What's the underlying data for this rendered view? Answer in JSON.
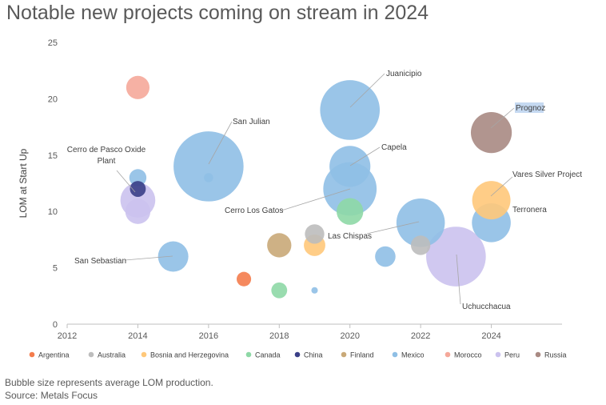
{
  "title": "Notable new projects coming on stream in 2024",
  "footer": {
    "note": "Bubble size represents average LOM production.",
    "source": "Source: Metals Focus"
  },
  "colors": {
    "Argentina": "#F47C4C",
    "Australia": "#BDBDBD",
    "Bosnia and Herzegovina": "#FFC87A",
    "Canada": "#8ED8A6",
    "China": "#3A3F87",
    "Finland": "#C9A978",
    "Mexico": "#8FBFE5",
    "Morocco": "#F5A89A",
    "Peru": "#CBC2EE",
    "Russia": "#A98A83"
  },
  "chart_data": {
    "type": "bubble",
    "title": "Notable new projects coming on stream in 2024",
    "xlabel": "",
    "ylabel": "LOM at Start Up",
    "xlim": [
      2012,
      2026
    ],
    "ylim": [
      0,
      25
    ],
    "xticks": [
      2012,
      2014,
      2016,
      2018,
      2020,
      2022,
      2024
    ],
    "yticks": [
      0,
      5,
      10,
      15,
      20,
      25
    ],
    "grid": false,
    "legend": [
      "Argentina",
      "Australia",
      "Bosnia and Herzegovina",
      "Canada",
      "China",
      "Finland",
      "Mexico",
      "Morocco",
      "Peru",
      "Russia"
    ],
    "legend_position": "bottom",
    "bubble_size_meaning": "average LOM production (relative)",
    "points": [
      {
        "country": "Argentina",
        "x": 2017,
        "y": 4,
        "size": 0.5
      },
      {
        "country": "Australia",
        "x": 2019,
        "y": 8,
        "size": 0.9
      },
      {
        "country": "Australia",
        "x": 2022,
        "y": 7,
        "size": 0.9
      },
      {
        "country": "Bosnia and Herzegovina",
        "x": 2019,
        "y": 7,
        "size": 1.1
      },
      {
        "country": "Bosnia and Herzegovina",
        "x": 2024,
        "y": 11,
        "size": 3.5
      },
      {
        "country": "Canada",
        "x": 2018,
        "y": 3,
        "size": 0.6
      },
      {
        "country": "Canada",
        "x": 2020,
        "y": 10,
        "size": 1.7
      },
      {
        "country": "China",
        "x": 2014,
        "y": 12,
        "size": 0.6
      },
      {
        "country": "Finland",
        "x": 2018,
        "y": 7,
        "size": 1.4
      },
      {
        "country": "Mexico",
        "x": 2014,
        "y": 13,
        "size": 0.7
      },
      {
        "country": "Mexico",
        "x": 2015,
        "y": 6,
        "size": 2.2
      },
      {
        "country": "Mexico",
        "x": 2016,
        "y": 14,
        "size": 11.7,
        "label": "San Julian"
      },
      {
        "country": "Mexico",
        "x": 2016,
        "y": 13,
        "size": 0.2
      },
      {
        "country": "Mexico",
        "x": 2019,
        "y": 3,
        "size": 0.1
      },
      {
        "country": "Mexico",
        "x": 2020,
        "y": 19,
        "size": 8.5,
        "label": "Juanicipio"
      },
      {
        "country": "Mexico",
        "x": 2020,
        "y": 14,
        "size": 4.0,
        "label": "Capela"
      },
      {
        "country": "Mexico",
        "x": 2020,
        "y": 12,
        "size": 6.8,
        "label": "Cerro Los Gatos"
      },
      {
        "country": "Mexico",
        "x": 2021,
        "y": 6,
        "size": 1.0
      },
      {
        "country": "Mexico",
        "x": 2022,
        "y": 9,
        "size": 5.6,
        "label": "Las Chispas"
      },
      {
        "country": "Mexico",
        "x": 2024,
        "y": 9,
        "size": 3.6,
        "label": "Terronera"
      },
      {
        "country": "Morocco",
        "x": 2014,
        "y": 21,
        "size": 1.3
      },
      {
        "country": "Peru",
        "x": 2014,
        "y": 11,
        "size": 2.9,
        "label": "Cerro de Pasco Oxide Plant"
      },
      {
        "country": "Peru",
        "x": 2014,
        "y": 10,
        "size": 1.5
      },
      {
        "country": "Peru",
        "x": 2023,
        "y": 6,
        "size": 8.5,
        "label": "Uchucchacua"
      },
      {
        "country": "Russia",
        "x": 2024,
        "y": 17,
        "size": 4.0,
        "label": "Prognoz"
      }
    ],
    "annotations": [
      {
        "text": "San Julian",
        "lines": [
          "San Julian"
        ]
      },
      {
        "text": "Juanicipio",
        "lines": [
          "Juanicipio"
        ]
      },
      {
        "text": "Capela",
        "lines": [
          "Capela"
        ]
      },
      {
        "text": "Cerro Los Gatos",
        "lines": [
          "Cerro Los Gatos"
        ]
      },
      {
        "text": "Las Chispas",
        "lines": [
          "Las Chispas"
        ]
      },
      {
        "text": "Terronera",
        "lines": [
          "Terronera"
        ]
      },
      {
        "text": "Uchucchacua",
        "lines": [
          "Uchucchacua"
        ]
      },
      {
        "text": "Prognoz",
        "lines": [
          "Prognoz"
        ]
      },
      {
        "text": "Vares Silver Project",
        "lines": [
          "Vares Silver Project"
        ]
      },
      {
        "text": "Cerro de Pasco Oxide Plant",
        "lines": [
          "Cerro de Pasco Oxide",
          "Plant"
        ]
      },
      {
        "text": "San Sebastian",
        "lines": [
          "San Sebastian"
        ]
      }
    ]
  }
}
